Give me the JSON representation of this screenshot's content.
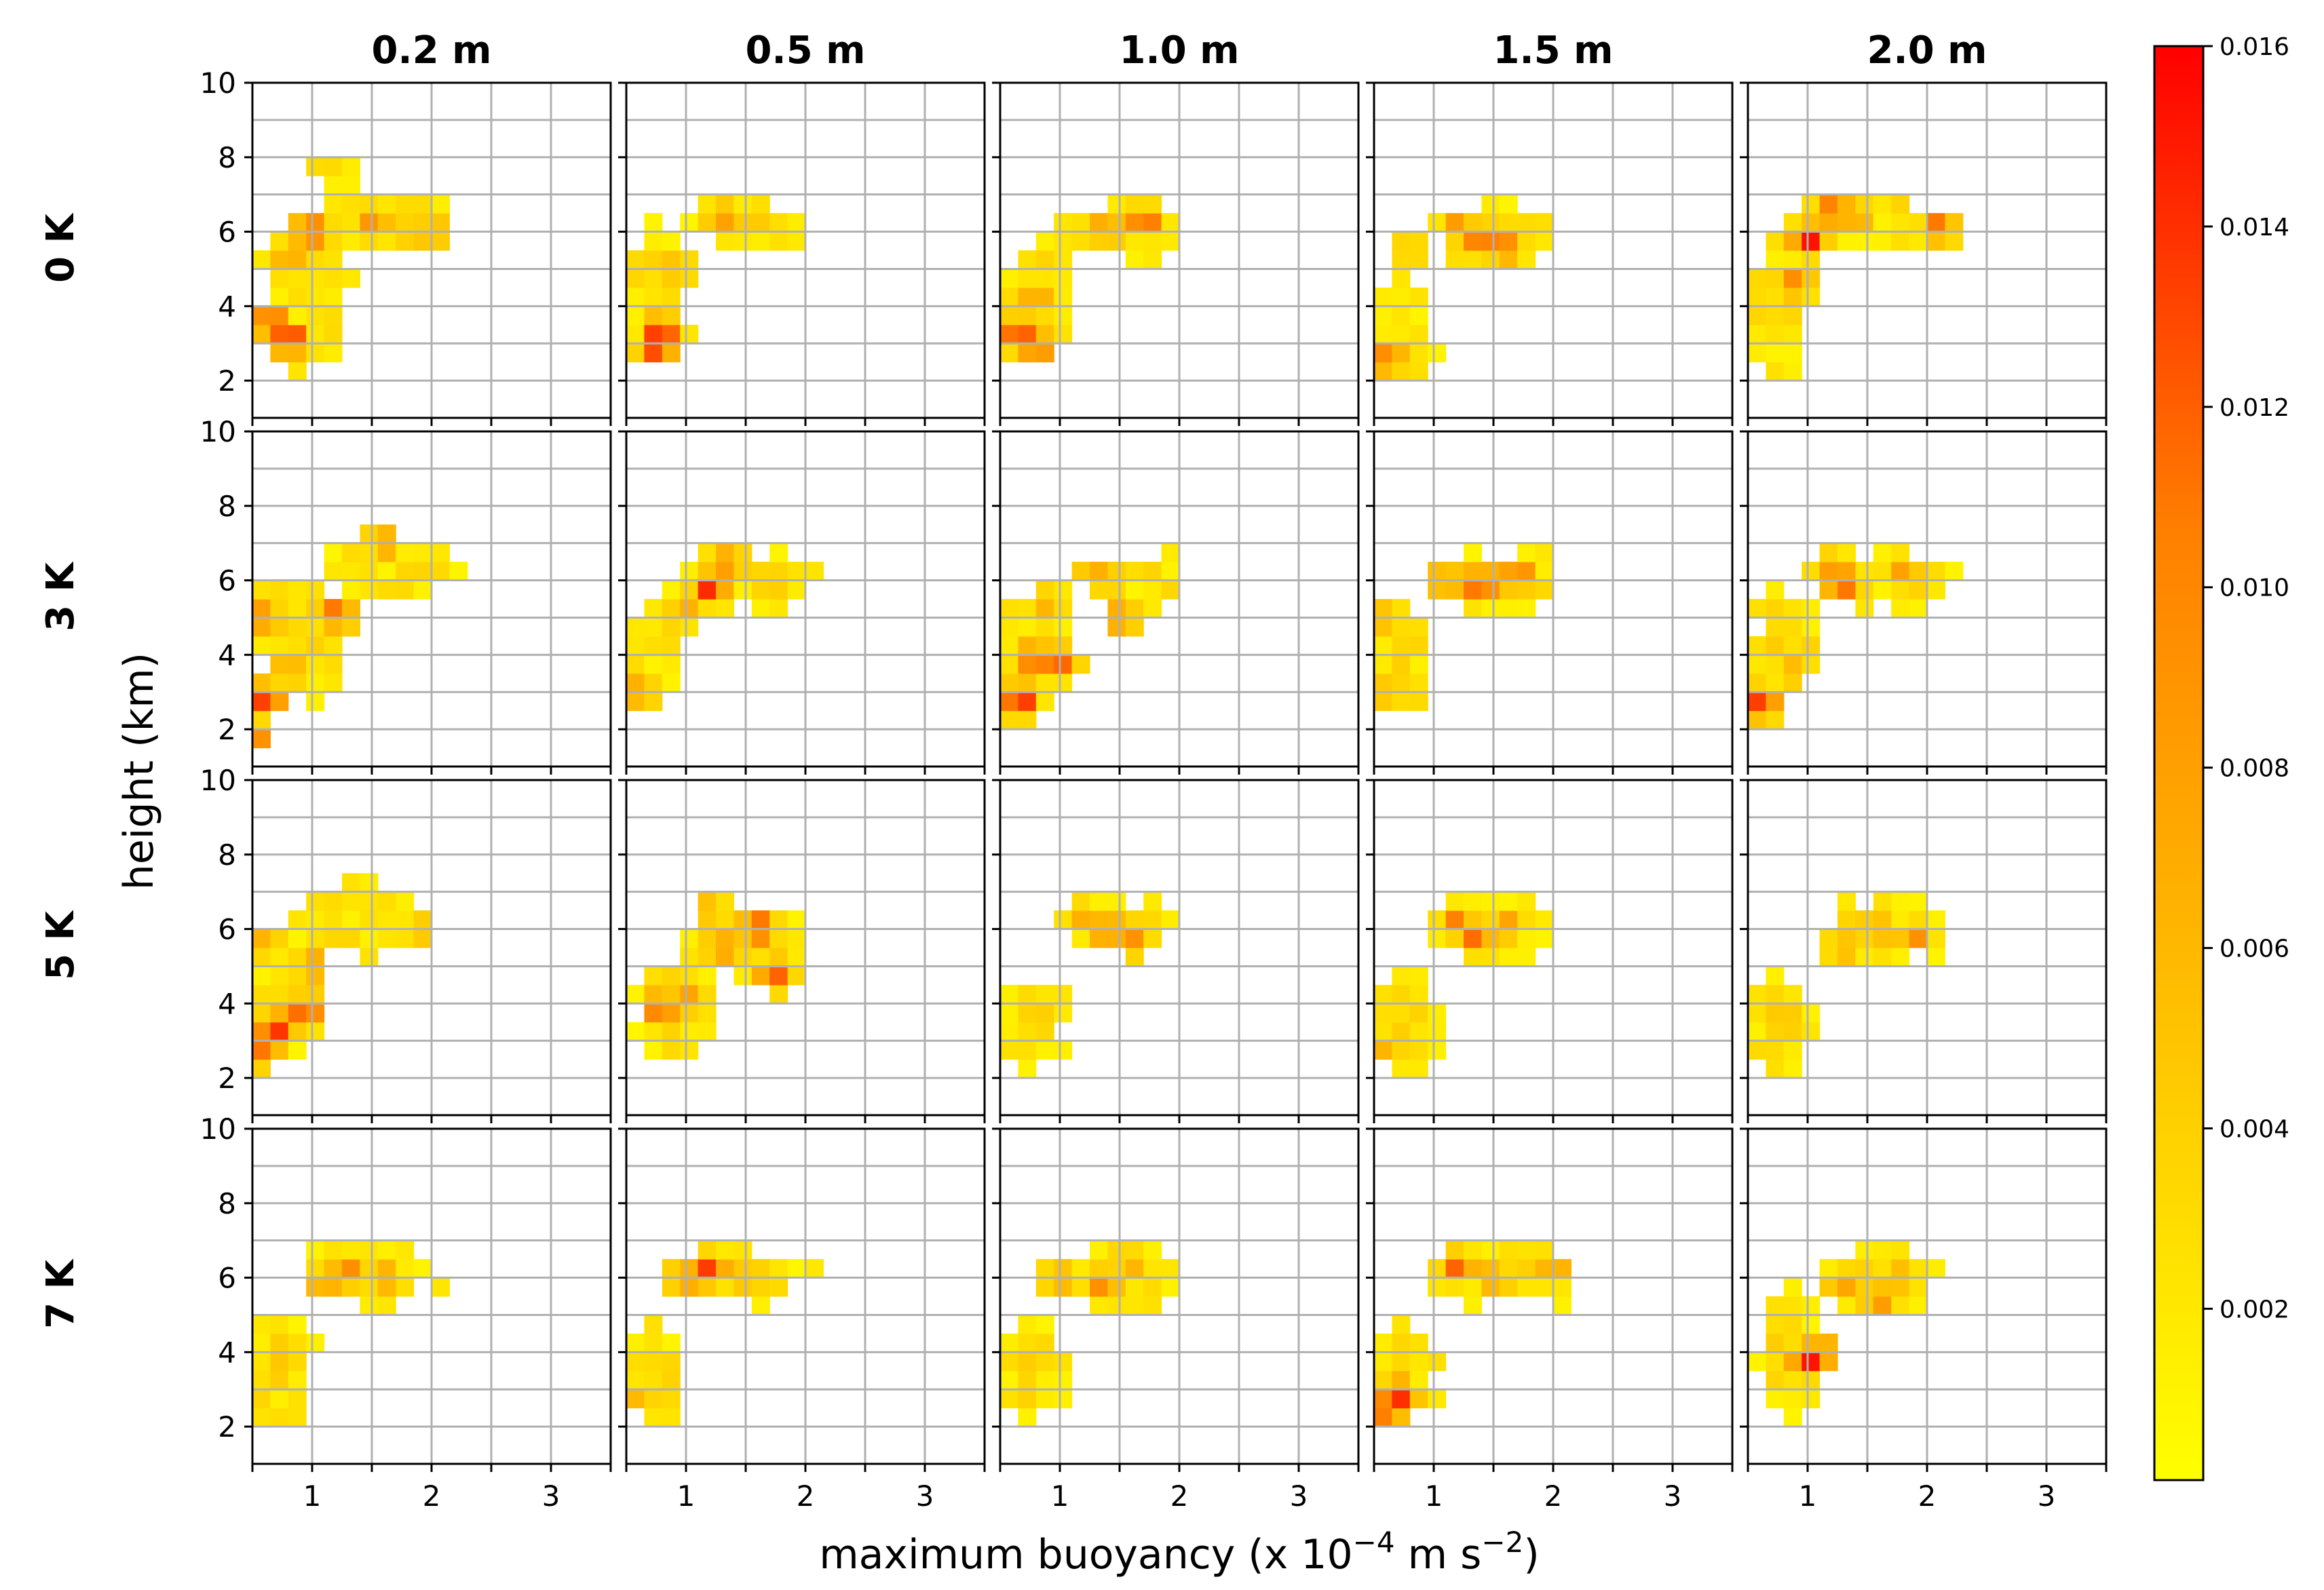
{
  "chart_data": {
    "type": "heatmap",
    "xlabel": "maximum buoyancy (x 10",
    "xlabel_exponent": "−4",
    "xlabel_units_tail": " m s",
    "xlabel_units_exponent": "−2",
    "xlabel_close": ")",
    "ylabel": "height (km)",
    "columns": [
      "0.2 m",
      "0.5 m",
      "1.0 m",
      "1.5 m",
      "2.0 m"
    ],
    "rows": [
      "0 K",
      "3 K",
      "5 K",
      "7 K"
    ],
    "xlim": [
      0.5,
      3.5
    ],
    "ylim": [
      1,
      10
    ],
    "xticks": [
      1,
      2,
      3
    ],
    "yticks": [
      2,
      4,
      6,
      8,
      10
    ],
    "x_grid": [
      0.5,
      1.0,
      1.5,
      2.0,
      2.5,
      3.0,
      3.5
    ],
    "y_grid": [
      1,
      2,
      3,
      4,
      5,
      6,
      7,
      8,
      9,
      10
    ],
    "bin_width_x": 0.15,
    "bin_height_y": 0.5,
    "colorbar": {
      "min": 0.0,
      "max": 0.016,
      "ticks": [
        "0.002",
        "0.004",
        "0.006",
        "0.008",
        "0.010",
        "0.012",
        "0.014",
        "0.016"
      ],
      "colors": [
        "#ffff00",
        "#ffc000",
        "#ff8000",
        "#ff0000"
      ]
    },
    "panels": [
      [
        {
          "dense": [
            [
              0.8,
              3.1,
              0.015
            ],
            [
              0.65,
              3.6,
              0.012
            ],
            [
              1.0,
              6.0,
              0.014
            ],
            [
              1.5,
              6.3,
              0.009
            ],
            [
              2.0,
              6.0,
              0.008
            ],
            [
              0.8,
              5.2,
              0.008
            ]
          ],
          "spread": [
            [
              0.9,
              4.0,
              0.45,
              2.2
            ],
            [
              1.6,
              6.2,
              0.7,
              0.9
            ],
            [
              1.2,
              7.6,
              0.35,
              0.5
            ]
          ],
          "extent": [
            0.5,
            2.45,
            1.3,
            8.5
          ]
        },
        {
          "dense": [
            [
              0.8,
              3.3,
              0.016
            ],
            [
              0.75,
              2.9,
              0.013
            ],
            [
              1.3,
              6.4,
              0.008
            ],
            [
              0.9,
              5.0,
              0.007
            ]
          ],
          "spread": [
            [
              0.75,
              4.5,
              0.25,
              2.0
            ],
            [
              1.5,
              6.2,
              0.5,
              0.8
            ]
          ],
          "extent": [
            0.5,
            2.3,
            1.3,
            8.5
          ]
        },
        {
          "dense": [
            [
              0.65,
              3.3,
              0.015
            ],
            [
              0.8,
              2.9,
              0.012
            ],
            [
              1.7,
              6.3,
              0.012
            ],
            [
              1.4,
              6.1,
              0.009
            ],
            [
              0.8,
              4.3,
              0.007
            ]
          ],
          "spread": [
            [
              0.8,
              4.3,
              0.35,
              1.8
            ],
            [
              1.5,
              6.0,
              0.55,
              0.9
            ]
          ],
          "extent": [
            0.5,
            2.3,
            1.3,
            8.1
          ]
        },
        {
          "dense": [
            [
              0.6,
              2.6,
              0.012
            ],
            [
              1.4,
              5.8,
              0.013
            ],
            [
              1.6,
              5.6,
              0.011
            ],
            [
              1.2,
              6.2,
              0.008
            ],
            [
              0.8,
              5.5,
              0.006
            ]
          ],
          "spread": [
            [
              0.75,
              3.5,
              0.3,
              1.8
            ],
            [
              1.5,
              6.0,
              0.6,
              1.0
            ]
          ],
          "extent": [
            0.5,
            2.6,
            1.7,
            8.5
          ]
        },
        {
          "dense": [
            [
              1.0,
              5.8,
              0.015
            ],
            [
              1.2,
              6.6,
              0.012
            ],
            [
              0.9,
              4.6,
              0.01
            ],
            [
              2.1,
              6.1,
              0.011
            ],
            [
              1.4,
              6.4,
              0.008
            ]
          ],
          "spread": [
            [
              0.75,
              4.0,
              0.35,
              2.0
            ],
            [
              1.6,
              6.2,
              0.55,
              1.0
            ]
          ],
          "extent": [
            0.5,
            2.4,
            1.1,
            9.4
          ]
        }
      ],
      [
        {
          "dense": [
            [
              0.6,
              2.8,
              0.014
            ],
            [
              1.2,
              5.1,
              0.013
            ],
            [
              0.6,
              5.0,
              0.01
            ],
            [
              0.8,
              3.6,
              0.008
            ],
            [
              1.6,
              7.0,
              0.008
            ],
            [
              0.5,
              1.6,
              0.012
            ]
          ],
          "spread": [
            [
              0.9,
              4.5,
              0.45,
              2.0
            ],
            [
              1.6,
              6.3,
              0.6,
              1.0
            ]
          ],
          "extent": [
            0.5,
            2.45,
            1.3,
            8.6
          ]
        },
        {
          "dense": [
            [
              1.2,
              5.8,
              0.013
            ],
            [
              1.35,
              6.5,
              0.01
            ],
            [
              0.6,
              3.0,
              0.008
            ],
            [
              1.0,
              5.2,
              0.007
            ],
            [
              1.7,
              6.0,
              0.006
            ]
          ],
          "spread": [
            [
              0.75,
              4.0,
              0.3,
              1.6
            ],
            [
              1.5,
              6.0,
              0.6,
              1.0
            ]
          ],
          "extent": [
            0.5,
            2.45,
            1.3,
            8.2
          ]
        },
        {
          "dense": [
            [
              0.65,
              2.8,
              0.016
            ],
            [
              0.8,
              3.9,
              0.013
            ],
            [
              1.0,
              3.8,
              0.011
            ],
            [
              1.3,
              6.2,
              0.008
            ],
            [
              1.5,
              5.0,
              0.009
            ],
            [
              0.9,
              5.4,
              0.007
            ]
          ],
          "spread": [
            [
              0.85,
              4.2,
              0.4,
              2.0
            ],
            [
              1.6,
              6.0,
              0.55,
              0.9
            ]
          ],
          "extent": [
            0.5,
            2.45,
            1.3,
            9.0
          ]
        },
        {
          "dense": [
            [
              1.4,
              5.9,
              0.014
            ],
            [
              1.7,
              6.1,
              0.011
            ],
            [
              1.1,
              6.0,
              0.009
            ],
            [
              0.6,
              5.0,
              0.007
            ],
            [
              0.6,
              3.0,
              0.006
            ]
          ],
          "spread": [
            [
              0.75,
              4.0,
              0.3,
              1.8
            ],
            [
              1.6,
              6.0,
              0.6,
              1.0
            ]
          ],
          "extent": [
            0.5,
            2.6,
            1.6,
            8.6
          ]
        },
        {
          "dense": [
            [
              0.6,
              2.7,
              0.015
            ],
            [
              1.3,
              5.9,
              0.013
            ],
            [
              1.2,
              6.3,
              0.009
            ],
            [
              1.8,
              6.2,
              0.008
            ],
            [
              0.9,
              3.8,
              0.006
            ]
          ],
          "spread": [
            [
              0.8,
              4.2,
              0.35,
              1.8
            ],
            [
              1.6,
              6.0,
              0.6,
              1.0
            ]
          ],
          "extent": [
            0.5,
            2.6,
            1.3,
            8.1
          ]
        }
      ],
      [
        {
          "dense": [
            [
              0.7,
              3.3,
              0.016
            ],
            [
              0.95,
              3.8,
              0.014
            ],
            [
              0.6,
              2.7,
              0.01
            ],
            [
              1.0,
              5.0,
              0.008
            ],
            [
              0.6,
              5.6,
              0.007
            ],
            [
              1.9,
              6.0,
              0.006
            ]
          ],
          "spread": [
            [
              0.8,
              4.0,
              0.35,
              2.0
            ],
            [
              1.4,
              6.2,
              0.65,
              1.1
            ]
          ],
          "extent": [
            0.5,
            2.45,
            1.1,
            8.5
          ]
        },
        {
          "dense": [
            [
              1.6,
              6.0,
              0.014
            ],
            [
              1.75,
              4.8,
              0.013
            ],
            [
              0.8,
              3.9,
              0.012
            ],
            [
              1.3,
              5.5,
              0.01
            ],
            [
              1.0,
              4.3,
              0.009
            ],
            [
              1.2,
              6.5,
              0.007
            ]
          ],
          "spread": [
            [
              0.9,
              4.0,
              0.4,
              1.8
            ],
            [
              1.5,
              5.8,
              0.6,
              1.1
            ]
          ],
          "extent": [
            0.5,
            2.45,
            1.3,
            9.4
          ]
        },
        {
          "dense": [
            [
              1.4,
              6.0,
              0.01
            ],
            [
              1.6,
              5.7,
              0.009
            ],
            [
              1.2,
              6.3,
              0.008
            ],
            [
              0.8,
              3.5,
              0.005
            ]
          ],
          "spread": [
            [
              0.75,
              3.5,
              0.3,
              1.6
            ],
            [
              1.5,
              6.0,
              0.55,
              1.0
            ]
          ],
          "extent": [
            0.5,
            2.3,
            1.1,
            8.5
          ]
        },
        {
          "dense": [
            [
              1.35,
              5.8,
              0.013
            ],
            [
              1.2,
              6.2,
              0.01
            ],
            [
              1.6,
              6.1,
              0.008
            ],
            [
              0.6,
              2.8,
              0.006
            ]
          ],
          "spread": [
            [
              0.75,
              3.5,
              0.3,
              1.8
            ],
            [
              1.5,
              6.0,
              0.55,
              1.0
            ]
          ],
          "extent": [
            0.5,
            2.6,
            1.1,
            8.1
          ]
        },
        {
          "dense": [
            [
              1.9,
              5.8,
              0.009
            ],
            [
              1.6,
              6.0,
              0.008
            ],
            [
              1.3,
              5.5,
              0.007
            ],
            [
              0.8,
              3.8,
              0.005
            ]
          ],
          "spread": [
            [
              0.75,
              3.5,
              0.35,
              1.8
            ],
            [
              1.6,
              6.0,
              0.6,
              1.1
            ]
          ],
          "extent": [
            0.5,
            2.45,
            1.1,
            8.5
          ]
        }
      ],
      [
        {
          "dense": [
            [
              1.3,
              6.2,
              0.01
            ],
            [
              1.6,
              6.0,
              0.008
            ],
            [
              1.1,
              5.8,
              0.007
            ],
            [
              0.7,
              3.5,
              0.006
            ]
          ],
          "spread": [
            [
              0.75,
              3.5,
              0.3,
              1.8
            ],
            [
              1.5,
              6.2,
              0.6,
              1.0
            ]
          ],
          "extent": [
            0.5,
            2.45,
            1.1,
            8.9
          ]
        },
        {
          "dense": [
            [
              1.2,
              6.2,
              0.014
            ],
            [
              1.0,
              6.0,
              0.01
            ],
            [
              1.5,
              6.0,
              0.007
            ],
            [
              0.6,
              2.8,
              0.007
            ]
          ],
          "spread": [
            [
              0.75,
              3.5,
              0.3,
              1.6
            ],
            [
              1.5,
              6.0,
              0.6,
              1.0
            ]
          ],
          "extent": [
            0.5,
            2.45,
            1.3,
            8.1
          ]
        },
        {
          "dense": [
            [
              1.35,
              5.8,
              0.01
            ],
            [
              1.0,
              6.0,
              0.008
            ],
            [
              1.6,
              6.3,
              0.007
            ],
            [
              0.8,
              4.0,
              0.005
            ]
          ],
          "spread": [
            [
              0.75,
              3.5,
              0.3,
              1.8
            ],
            [
              1.5,
              6.0,
              0.6,
              1.0
            ]
          ],
          "extent": [
            0.5,
            2.45,
            1.3,
            8.5
          ]
        },
        {
          "dense": [
            [
              0.7,
              2.8,
              0.016
            ],
            [
              0.6,
              2.4,
              0.012
            ],
            [
              1.2,
              6.3,
              0.012
            ],
            [
              1.5,
              6.0,
              0.008
            ],
            [
              2.0,
              6.2,
              0.007
            ]
          ],
          "spread": [
            [
              0.75,
              3.5,
              0.3,
              1.6
            ],
            [
              1.6,
              6.0,
              0.65,
              1.0
            ]
          ],
          "extent": [
            0.5,
            2.6,
            1.6,
            8.5
          ]
        },
        {
          "dense": [
            [
              1.0,
              3.8,
              0.015
            ],
            [
              1.1,
              4.0,
              0.012
            ],
            [
              1.6,
              5.4,
              0.01
            ],
            [
              1.3,
              5.8,
              0.008
            ],
            [
              1.8,
              6.0,
              0.007
            ]
          ],
          "spread": [
            [
              0.85,
              4.0,
              0.35,
              1.8
            ],
            [
              1.6,
              6.0,
              0.55,
              1.0
            ]
          ],
          "extent": [
            0.5,
            2.45,
            1.3,
            9.4
          ]
        }
      ]
    ]
  }
}
